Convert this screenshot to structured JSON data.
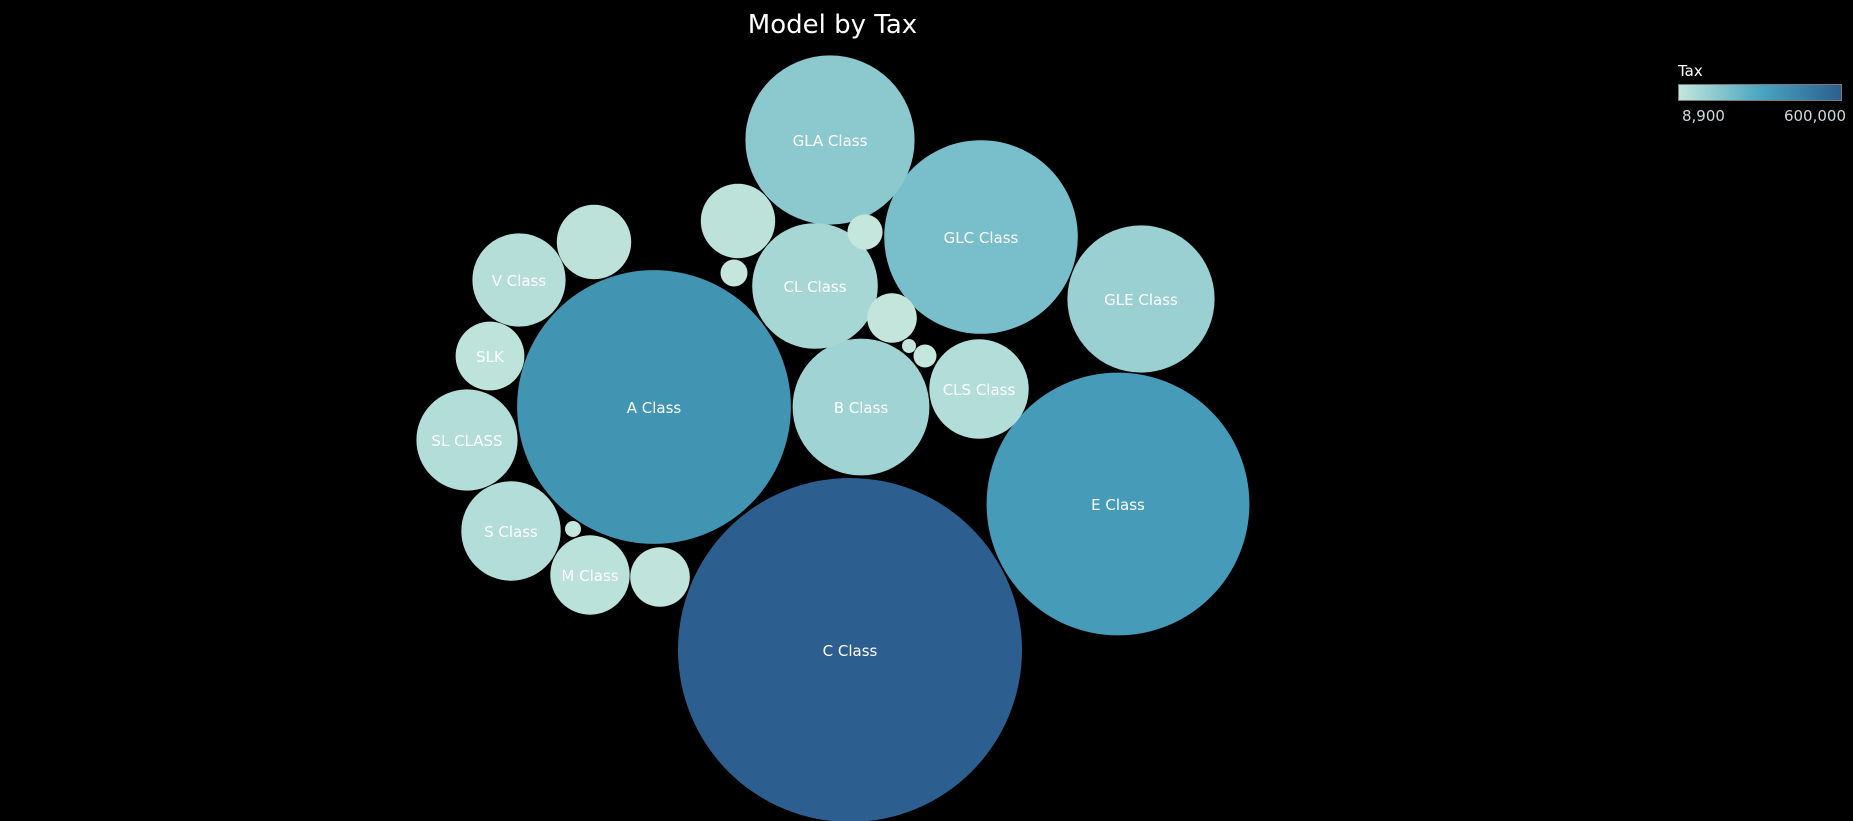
{
  "chart_data": {
    "type": "packed-bubble",
    "title": "Model by Tax",
    "measure": "Tax",
    "color_scale": {
      "min": 8900,
      "max": 600000,
      "min_label": "8,900",
      "max_label": "600,000",
      "min_color": "#c4e6dc",
      "mid_color": "#4aa6c0",
      "max_color": "#2c5f8f"
    },
    "bubbles": [
      {
        "label": "C Class",
        "value": 600000
      },
      {
        "label": "E Class",
        "value": 350000
      },
      {
        "label": "A Class",
        "value": 380000
      },
      {
        "label": "GLC Class",
        "value": 190000
      },
      {
        "label": "GLA Class",
        "value": 145000
      },
      {
        "label": "GLE Class",
        "value": 110000
      },
      {
        "label": "B Class",
        "value": 95000
      },
      {
        "label": "CL Class",
        "value": 80000
      },
      {
        "label": "SL CLASS",
        "value": 52000
      },
      {
        "label": "S Class",
        "value": 50000
      },
      {
        "label": "M Class",
        "value": 32000
      },
      {
        "label": "V Class",
        "value": 44000
      },
      {
        "label": "CLS Class",
        "value": 50000
      },
      {
        "label": "SLK",
        "value": 24000
      },
      {
        "label": "",
        "value": 28000
      },
      {
        "label": "",
        "value": 28000
      },
      {
        "label": "",
        "value": 18000
      },
      {
        "label": "",
        "value": 12500
      },
      {
        "label": "",
        "value": 6300
      },
      {
        "label": "",
        "value": 3700
      },
      {
        "label": "",
        "value": 2700
      },
      {
        "label": "",
        "value": 1300
      },
      {
        "label": "",
        "value": 1000
      }
    ]
  }
}
